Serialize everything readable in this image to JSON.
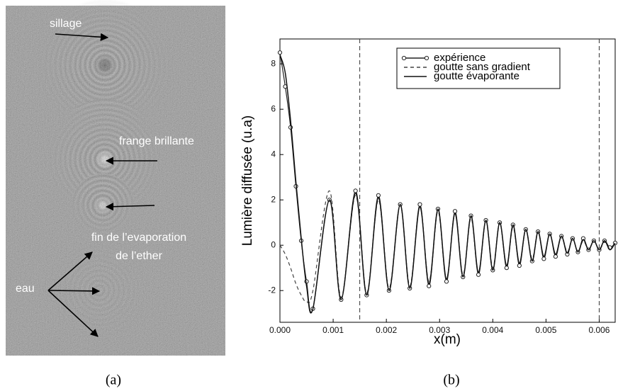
{
  "image_panel": {
    "annotations": [
      "sillage",
      "frange brillante",
      "fin de l’evaporation",
      "de l’ether",
      "eau"
    ],
    "caption": "(a)"
  },
  "chart_data": {
    "type": "line",
    "caption": "(b)",
    "xlabel": "x(m)",
    "ylabel": "Lumière diffusée (u.a)",
    "x": [
      0,
      0.0001,
      0.0002,
      0.0003,
      0.0004,
      0.0005,
      0.00062,
      0.00093,
      0.00115,
      0.00142,
      0.00163,
      0.00185,
      0.00205,
      0.00226,
      0.00244,
      0.00263,
      0.0028,
      0.00297,
      0.00313,
      0.00329,
      0.00344,
      0.00359,
      0.00373,
      0.00387,
      0.004,
      0.00413,
      0.00426,
      0.00438,
      0.0045,
      0.00462,
      0.00474,
      0.00485,
      0.00496,
      0.00507,
      0.00518,
      0.00529,
      0.0054,
      0.0055,
      0.0056,
      0.0057,
      0.0058,
      0.0059,
      0.006,
      0.0061,
      0.0062,
      0.0063
    ],
    "series": [
      {
        "name": "expérience",
        "color": "#222222",
        "style": "line-markers",
        "values": [
          8.5,
          7.0,
          5.2,
          2.6,
          0.2,
          -1.6,
          -2.8,
          2.0,
          -2.4,
          2.4,
          -2.2,
          2.2,
          -2.0,
          1.8,
          -1.9,
          1.8,
          -1.8,
          1.6,
          -1.6,
          1.5,
          -1.4,
          1.3,
          -1.3,
          1.1,
          -1.1,
          1.0,
          -1.0,
          0.9,
          -0.9,
          0.7,
          -0.7,
          0.6,
          -0.6,
          0.5,
          -0.5,
          0.4,
          -0.4,
          0.3,
          -0.3,
          0.3,
          -0.2,
          0.2,
          -0.2,
          0.2,
          -0.1,
          0.1
        ]
      },
      {
        "name": "goutte sans gradient",
        "color": "#444444",
        "style": "dashed",
        "values": [
          0,
          -0.4,
          -1.0,
          -1.7,
          -2.2,
          -2.5,
          -2.0,
          2.4,
          -2.3,
          2.2,
          -2.1,
          2.0,
          -1.9,
          1.8,
          -1.8,
          1.7,
          -1.6,
          1.5,
          -1.5,
          1.4,
          -1.3,
          1.2,
          -1.2,
          1.1,
          -1.0,
          1.0,
          -0.9,
          0.8,
          -0.8,
          0.7,
          -0.6,
          0.6,
          -0.5,
          0.5,
          -0.4,
          0.4,
          -0.3,
          0.3,
          -0.3,
          0.2,
          -0.2,
          0.2,
          -0.2,
          0.15,
          -0.15,
          0.1
        ]
      },
      {
        "name": "goutte évaporante",
        "color": "#111111",
        "style": "solid",
        "values": [
          8.4,
          7.6,
          5.5,
          2.8,
          0.3,
          -1.8,
          -2.8,
          2.0,
          -2.4,
          2.3,
          -2.2,
          2.1,
          -2.0,
          1.8,
          -1.9,
          1.7,
          -1.7,
          1.6,
          -1.5,
          1.4,
          -1.4,
          1.3,
          -1.2,
          1.1,
          -1.1,
          1.0,
          -0.9,
          0.9,
          -0.8,
          0.7,
          -0.7,
          0.6,
          -0.5,
          0.5,
          -0.4,
          0.4,
          -0.35,
          0.3,
          -0.3,
          0.25,
          -0.2,
          0.2,
          -0.2,
          0.2,
          -0.2,
          0.1
        ]
      }
    ],
    "xlim": [
      0,
      0.0063
    ],
    "ylim": [
      -3.4,
      9.1
    ],
    "xticks": [
      {
        "value": 0,
        "label": "0.000"
      },
      {
        "value": 0.001,
        "label": "0.001"
      },
      {
        "value": 0.002,
        "label": "0.002"
      },
      {
        "value": 0.003,
        "label": "0.003"
      },
      {
        "value": 0.004,
        "label": "0.004"
      },
      {
        "value": 0.005,
        "label": "0.005"
      },
      {
        "value": 0.006,
        "label": "0.006"
      }
    ],
    "yticks": [
      -2,
      0,
      2,
      4,
      6,
      8
    ],
    "vlines": [
      0.0015,
      0.006
    ],
    "grid": false,
    "legend": "upper right"
  }
}
